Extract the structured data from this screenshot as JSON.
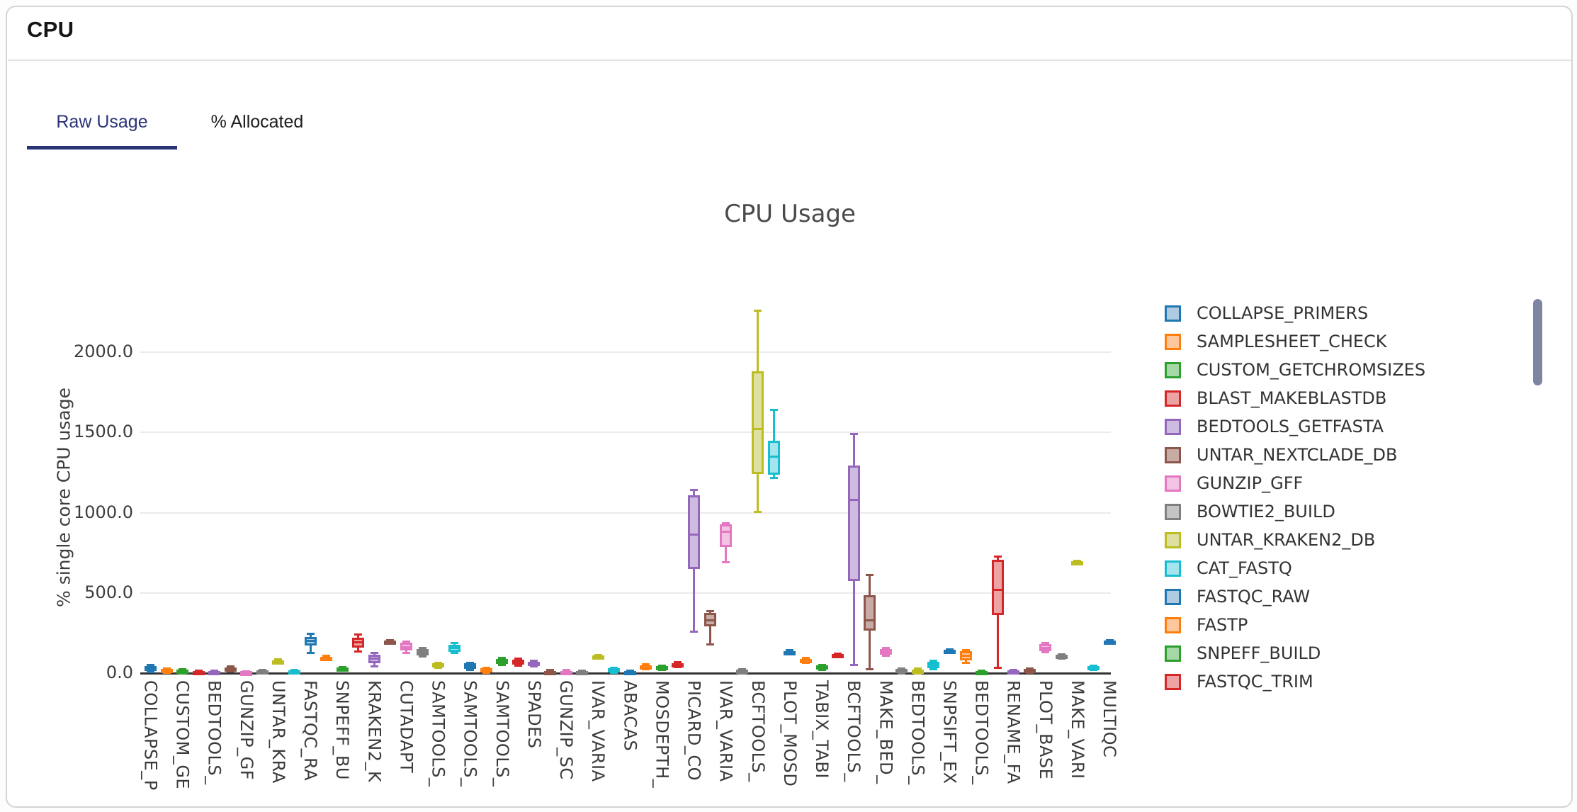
{
  "header": {
    "title": "CPU"
  },
  "tabs": [
    {
      "label": "Raw Usage",
      "active": true
    },
    {
      "label": "% Allocated",
      "active": false
    }
  ],
  "ui_colors": {
    "accent_navy": "#2b3377",
    "card_border": "#d4d4d4",
    "grid": "#ebebeb",
    "axis_line": "#333333",
    "scrollbar_thumb": "#7c86a2"
  },
  "chart_data": {
    "type": "box",
    "title": "CPU Usage",
    "ylabel": "% single core CPU usage",
    "xlabel": "",
    "grid": true,
    "legend_position": "right",
    "ylim": [
      -70,
      2350
    ],
    "yticks": [
      {
        "label": "0.0",
        "value": 0
      },
      {
        "label": "500.0",
        "value": 500
      },
      {
        "label": "1000.0",
        "value": 1000
      },
      {
        "label": "1500.0",
        "value": 1500
      },
      {
        "label": "2000.0",
        "value": 2000
      }
    ],
    "palette": [
      "#1f77b4",
      "#ff7f0e",
      "#2ca02c",
      "#d62728",
      "#9467bd",
      "#8c564b",
      "#e377c2",
      "#7f7f7f",
      "#bcbd22",
      "#17becf"
    ],
    "palette_fill": [
      "#aecbe2",
      "#ffc79c",
      "#a6d7a6",
      "#eda3a4",
      "#cdbce0",
      "#c8aba4",
      "#f2c3e2",
      "#c4c4c4",
      "#dfe0a0",
      "#a4e4ee"
    ],
    "x_tick_labels": [
      "COLLAPSE_P",
      "CUSTOM_GE",
      "BEDTOOLS_",
      "GUNZIP_GF",
      "UNTAR_KRA",
      "FASTQC_RA",
      "SNPEFF_BU",
      "KRAKEN2_K",
      "CUTADAPT",
      "SAMTOOLS_",
      "SAMTOOLS_",
      "SAMTOOLS_",
      "SPADES",
      "GUNZIP_SC",
      "IVAR_VARIA",
      "ABACAS",
      "MOSDEPTH_",
      "PICARD_CO",
      "IVAR_VARIA",
      "BCFTOOLS_",
      "PLOT_MOSD",
      "TABIX_TABI",
      "BCFTOOLS_",
      "MAKE_BED_",
      "BEDTOOLS_",
      "SNPSIFT_EX",
      "BEDTOOLS_",
      "RENAME_FA",
      "PLOT_BASE",
      "MAKE_VARI",
      "MULTIQC"
    ],
    "legend": [
      {
        "label": "COLLAPSE_PRIMERS",
        "color": 0
      },
      {
        "label": "SAMPLESHEET_CHECK",
        "color": 1
      },
      {
        "label": "CUSTOM_GETCHROMSIZES",
        "color": 2
      },
      {
        "label": "BLAST_MAKEBLASTDB",
        "color": 3
      },
      {
        "label": "BEDTOOLS_GETFASTA",
        "color": 4
      },
      {
        "label": "UNTAR_NEXTCLADE_DB",
        "color": 5
      },
      {
        "label": "GUNZIP_GFF",
        "color": 6
      },
      {
        "label": "BOWTIE2_BUILD",
        "color": 7
      },
      {
        "label": "UNTAR_KRAKEN2_DB",
        "color": 8
      },
      {
        "label": "CAT_FASTQ",
        "color": 9
      },
      {
        "label": "FASTQC_RAW",
        "color": 0
      },
      {
        "label": "FASTP",
        "color": 1
      },
      {
        "label": "SNPEFF_BUILD",
        "color": 2
      },
      {
        "label": "FASTQC_TRIM",
        "color": 3
      }
    ],
    "series": [
      {
        "name": "COLLAPSE_PRIMERS",
        "color": 0,
        "values": [
          5,
          15,
          30,
          45,
          50
        ]
      },
      {
        "name": "SAMPLESHEET_CHECK",
        "color": 1,
        "values": [
          2,
          6,
          15,
          26,
          30
        ]
      },
      {
        "name": "CUSTOM_GETCHROMSIZES",
        "color": 2,
        "values": [
          0,
          4,
          11,
          21,
          25
        ]
      },
      {
        "name": "BLAST_MAKEBLASTDB",
        "color": 3,
        "values": [
          0,
          2,
          7,
          13,
          16
        ]
      },
      {
        "name": "BEDTOOLS_GETFASTA",
        "color": 4,
        "values": [
          0,
          2,
          7,
          13,
          16
        ]
      },
      {
        "name": "UNTAR_NEXTCLADE_DB",
        "color": 5,
        "values": [
          10,
          15,
          25,
          36,
          40
        ]
      },
      {
        "name": "GUNZIP_GFF",
        "color": 6,
        "values": [
          0,
          2,
          5,
          10,
          12
        ]
      },
      {
        "name": "BOWTIE2_BUILD",
        "color": 7,
        "values": [
          0,
          3,
          9,
          17,
          20
        ]
      },
      {
        "name": "UNTAR_KRAKEN2_DB",
        "color": 8,
        "values": [
          58,
          62,
          70,
          79,
          84
        ]
      },
      {
        "name": "CAT_FASTQ",
        "color": 9,
        "values": [
          0,
          3,
          9,
          18,
          22
        ]
      },
      {
        "name": "FASTQC_RAW",
        "color": 0,
        "values": [
          125,
          170,
          200,
          225,
          245
        ]
      },
      {
        "name": "FASTP",
        "color": 1,
        "values": [
          85,
          90,
          96,
          103,
          108
        ]
      },
      {
        "name": "SNPEFF_BUILD",
        "color": 2,
        "values": [
          18,
          22,
          28,
          34,
          38
        ]
      },
      {
        "name": "FASTQC_TRIM",
        "color": 3,
        "values": [
          135,
          160,
          190,
          220,
          240
        ]
      },
      {
        "name": "KRAKEN2_K",
        "color": 4,
        "values": [
          44,
          62,
          90,
          115,
          125
        ]
      },
      {
        "name": "",
        "color": 5,
        "values": [
          185,
          190,
          196,
          203,
          207
        ]
      },
      {
        "name": "CUTADAPT",
        "color": 6,
        "values": [
          128,
          140,
          163,
          188,
          196
        ]
      },
      {
        "name": "",
        "color": 7,
        "values": [
          104,
          112,
          130,
          150,
          157
        ]
      },
      {
        "name": "SAMTOOLS_",
        "color": 8,
        "values": [
          32,
          38,
          48,
          60,
          65
        ]
      },
      {
        "name": "",
        "color": 9,
        "values": [
          124,
          133,
          155,
          178,
          186
        ]
      },
      {
        "name": "SAMTOOLS_",
        "color": 0,
        "values": [
          20,
          26,
          42,
          60,
          66
        ]
      },
      {
        "name": "",
        "color": 1,
        "values": [
          4,
          8,
          18,
          30,
          34
        ]
      },
      {
        "name": "SAMTOOLS_",
        "color": 2,
        "values": [
          50,
          58,
          73,
          90,
          96
        ]
      },
      {
        "name": "",
        "color": 3,
        "values": [
          45,
          52,
          66,
          85,
          91
        ]
      },
      {
        "name": "SPADES",
        "color": 4,
        "values": [
          40,
          45,
          57,
          72,
          78
        ]
      },
      {
        "name": "",
        "color": 5,
        "values": [
          0,
          2,
          8,
          15,
          18
        ]
      },
      {
        "name": "GUNZIP_SC",
        "color": 6,
        "values": [
          0,
          2,
          8,
          15,
          18
        ]
      },
      {
        "name": "",
        "color": 7,
        "values": [
          0,
          2,
          7,
          13,
          15
        ]
      },
      {
        "name": "IVAR_VARIA",
        "color": 8,
        "values": [
          95,
          98,
          103,
          109,
          112
        ]
      },
      {
        "name": "",
        "color": 9,
        "values": [
          4,
          8,
          18,
          29,
          33
        ]
      },
      {
        "name": "ABACAS",
        "color": 0,
        "values": [
          0,
          2,
          6,
          12,
          14
        ]
      },
      {
        "name": "",
        "color": 1,
        "values": [
          24,
          28,
          38,
          50,
          55
        ]
      },
      {
        "name": "MOSDEPTH_",
        "color": 2,
        "values": [
          20,
          24,
          32,
          42,
          46
        ]
      },
      {
        "name": "",
        "color": 3,
        "values": [
          38,
          43,
          52,
          64,
          68
        ]
      },
      {
        "name": "PICARD_CO",
        "color": 4,
        "values": [
          260,
          650,
          865,
          1110,
          1140
        ]
      },
      {
        "name": "",
        "color": 5,
        "values": [
          180,
          290,
          330,
          375,
          388
        ]
      },
      {
        "name": "IVAR_VARIA",
        "color": 6,
        "values": [
          690,
          786,
          880,
          925,
          934
        ]
      },
      {
        "name": "",
        "color": 7,
        "values": [
          0,
          4,
          12,
          22,
          26
        ]
      },
      {
        "name": "BCFTOOLS_",
        "color": 8,
        "values": [
          1005,
          1240,
          1520,
          1880,
          2260
        ]
      },
      {
        "name": "",
        "color": 9,
        "values": [
          1218,
          1237,
          1350,
          1448,
          1640
        ]
      },
      {
        "name": "PLOT_MOSD",
        "color": 0,
        "values": [
          120,
          124,
          131,
          139,
          143
        ]
      },
      {
        "name": "",
        "color": 1,
        "values": [
          62,
          68,
          78,
          90,
          95
        ]
      },
      {
        "name": "TABIX_TABI",
        "color": 2,
        "values": [
          22,
          27,
          36,
          48,
          52
        ]
      },
      {
        "name": "",
        "color": 3,
        "values": [
          100,
          104,
          110,
          117,
          121
        ]
      },
      {
        "name": "BCFTOOLS_",
        "color": 4,
        "values": [
          50,
          575,
          1080,
          1295,
          1490
        ]
      },
      {
        "name": "",
        "color": 5,
        "values": [
          25,
          265,
          330,
          485,
          612
        ]
      },
      {
        "name": "MAKE_BED_",
        "color": 6,
        "values": [
          108,
          115,
          132,
          150,
          156
        ]
      },
      {
        "name": "",
        "color": 7,
        "values": [
          0,
          4,
          13,
          26,
          30
        ]
      },
      {
        "name": "BEDTOOLS_",
        "color": 8,
        "values": [
          0,
          3,
          12,
          24,
          28
        ]
      },
      {
        "name": "",
        "color": 9,
        "values": [
          26,
          32,
          50,
          72,
          78
        ]
      },
      {
        "name": "SNPSIFT_EX",
        "color": 0,
        "values": [
          126,
          130,
          137,
          146,
          150
        ]
      },
      {
        "name": "",
        "color": 1,
        "values": [
          64,
          80,
          108,
          138,
          144
        ]
      },
      {
        "name": "BEDTOOLS_",
        "color": 2,
        "values": [
          0,
          2,
          7,
          13,
          15
        ]
      },
      {
        "name": "",
        "color": 3,
        "values": [
          35,
          360,
          520,
          705,
          727
        ]
      },
      {
        "name": "RENAME_FA",
        "color": 4,
        "values": [
          0,
          3,
          10,
          19,
          22
        ]
      },
      {
        "name": "",
        "color": 5,
        "values": [
          4,
          8,
          16,
          26,
          29
        ]
      },
      {
        "name": "PLOT_BASE",
        "color": 6,
        "values": [
          132,
          138,
          158,
          180,
          186
        ]
      },
      {
        "name": "",
        "color": 7,
        "values": [
          92,
          96,
          104,
          115,
          119
        ]
      },
      {
        "name": "MAKE_VARI",
        "color": 8,
        "values": [
          682,
          685,
          691,
          697,
          700
        ]
      },
      {
        "name": "",
        "color": 9,
        "values": [
          20,
          24,
          32,
          42,
          45
        ]
      },
      {
        "name": "MULTIQC",
        "color": 0,
        "values": [
          183,
          187,
          194,
          202,
          205
        ]
      }
    ]
  }
}
